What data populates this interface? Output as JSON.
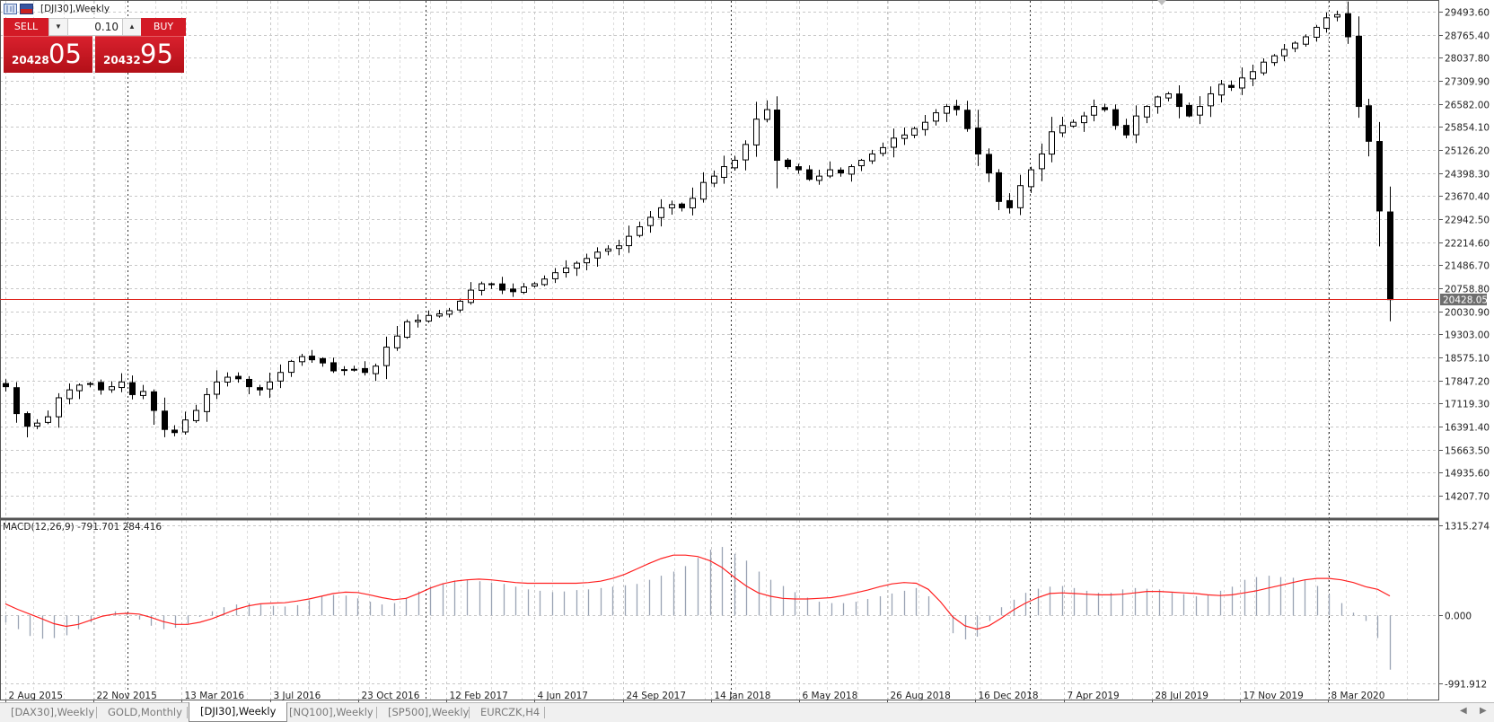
{
  "window": {
    "symbol_title": "[DJI30],Weekly"
  },
  "trade_panel": {
    "sell_label": "SELL",
    "buy_label": "BUY",
    "volume": "0.10",
    "bid_prefix": "20428",
    "bid_big": "05",
    "ask_prefix": "20432",
    "ask_big": "95"
  },
  "price_axis": {
    "labels": [
      "29493.60",
      "28765.40",
      "28037.80",
      "27309.90",
      "26582.00",
      "25854.10",
      "25126.20",
      "24398.30",
      "23670.40",
      "22942.50",
      "22214.60",
      "21486.70",
      "20758.80",
      "20030.90",
      "19303.00",
      "18575.10",
      "17847.20",
      "17119.30",
      "16391.40",
      "15663.50",
      "14935.60",
      "14207.70"
    ],
    "current_price": "20428.05"
  },
  "macd": {
    "label": "MACD(12,26,9) -791.701 284.416",
    "axis_labels": [
      "1315.274",
      "0.000",
      "-991.912"
    ]
  },
  "time_axis": {
    "labels": [
      "2 Aug 2015",
      "22 Nov 2015",
      "13 Mar 2016",
      "3 Jul 2016",
      "23 Oct 2016",
      "12 Feb 2017",
      "4 Jun 2017",
      "24 Sep 2017",
      "14 Jan 2018",
      "6 May 2018",
      "26 Aug 2018",
      "16 Dec 2018",
      "7 Apr 2019",
      "28 Jul 2019",
      "17 Nov 2019",
      "8 Mar 2020"
    ]
  },
  "tabs": [
    {
      "label": "[DAX30],Weekly",
      "active": false
    },
    {
      "label": "GOLD,Monthly",
      "active": false
    },
    {
      "label": "[DJI30],Weekly",
      "active": true
    },
    {
      "label": "[NQ100],Weekly",
      "active": false
    },
    {
      "label": "[SP500],Weekly",
      "active": false
    },
    {
      "label": "EURCZK,H4",
      "active": false
    }
  ],
  "colors": {
    "bid_line": "#e0231c",
    "macd_signal": "#ff2020",
    "macd_hist": "#9aa3b4",
    "panel_red": "#d31a26",
    "grid": "#c8c8c8"
  },
  "chart_data": [
    {
      "type": "candlestick",
      "title": "[DJI30],Weekly",
      "series": [
        {
          "name": "[DJI30]",
          "values": [
            17650,
            16800,
            16400,
            16500,
            16700,
            17300,
            17550,
            17700,
            17750,
            17550,
            17650,
            17800,
            17400,
            17500,
            16900,
            16300,
            16200,
            16600,
            16900,
            17400,
            17800,
            17950,
            17900,
            17650,
            17550,
            17800,
            18100,
            18450,
            18600,
            18500,
            18400,
            18150,
            18180,
            18200,
            18100,
            18300,
            18900,
            19250,
            19700,
            19750,
            19900,
            19950,
            20050,
            20350,
            20700,
            20900,
            20900,
            20700,
            20650,
            20800,
            20900,
            21050,
            21250,
            21400,
            21550,
            21700,
            21900,
            22000,
            22100,
            22400,
            22700,
            23000,
            23300,
            23400,
            23300,
            23600,
            24100,
            24300,
            24600,
            24800,
            25300,
            26100,
            26400,
            24800,
            24600,
            24500,
            24200,
            24300,
            24500,
            24400,
            24600,
            24800,
            25000,
            25200,
            25500,
            25600,
            25800,
            26000,
            26300,
            26500,
            26400,
            25800,
            25000,
            24400,
            23500,
            23300,
            24000,
            24500,
            25000,
            25700,
            25900,
            26000,
            26200,
            26500,
            26400,
            25900,
            25600,
            26200,
            26500,
            26800,
            26900,
            26500,
            26200,
            26500,
            26900,
            27200,
            27100,
            27400,
            27600,
            27900,
            28100,
            28300,
            28500,
            28700,
            29000,
            29300,
            29400,
            28700,
            26500,
            25400,
            23200,
            20400
          ]
        }
      ],
      "x_range": [
        "2 Aug 2015",
        "8 Mar 2020"
      ],
      "y_range": [
        14207.7,
        29493.6
      ],
      "current_price": 20428.05
    },
    {
      "type": "line",
      "title": "MACD(12,26,9) -791.701 284.416",
      "series": [
        {
          "name": "MACD histogram",
          "values": [
            -100,
            -200,
            -300,
            -340,
            -330,
            -290,
            -200,
            -100,
            0,
            60,
            40,
            -60,
            -150,
            -200,
            -180,
            -120,
            -20,
            60,
            120,
            160,
            180,
            160,
            140,
            130,
            150,
            220,
            280,
            300,
            290,
            250,
            200,
            160,
            180,
            260,
            350,
            420,
            470,
            510,
            520,
            500,
            480,
            460,
            420,
            380,
            360,
            340,
            350,
            370,
            380,
            400,
            420,
            440,
            460,
            520,
            580,
            640,
            720,
            840,
            960,
            1000,
            900,
            800,
            640,
            520,
            430,
            340,
            260,
            200,
            180,
            180,
            200,
            240,
            280,
            320,
            360,
            400,
            280,
            0,
            -260,
            -350,
            -310,
            -80,
            120,
            230,
            330,
            390,
            420,
            430,
            400,
            360,
            330,
            330,
            380,
            400,
            390,
            380,
            330,
            310,
            280,
            300,
            360,
            420,
            520,
            560,
            580,
            560,
            550,
            520,
            430,
            310,
            180,
            40,
            -80,
            -330,
            -791.701
          ]
        },
        {
          "name": "Signal",
          "values": [
            170,
            90,
            20,
            -50,
            -120,
            -160,
            -130,
            -70,
            -10,
            20,
            30,
            20,
            -30,
            -90,
            -130,
            -130,
            -100,
            -50,
            20,
            90,
            140,
            170,
            180,
            185,
            210,
            240,
            280,
            320,
            340,
            335,
            300,
            260,
            230,
            250,
            320,
            400,
            460,
            500,
            520,
            530,
            520,
            500,
            480,
            470,
            470,
            470,
            470,
            470,
            480,
            500,
            540,
            600,
            680,
            760,
            830,
            880,
            880,
            860,
            800,
            700,
            560,
            430,
            330,
            280,
            250,
            240,
            240,
            250,
            260,
            290,
            330,
            370,
            420,
            460,
            480,
            470,
            380,
            200,
            -20,
            -150,
            -200,
            -150,
            -40,
            80,
            180,
            260,
            320,
            330,
            320,
            310,
            300,
            300,
            310,
            330,
            350,
            350,
            340,
            330,
            320,
            300,
            290,
            300,
            330,
            360,
            400,
            440,
            480,
            520,
            540,
            540,
            520,
            480,
            420,
            380,
            284.416
          ]
        }
      ],
      "y_range": [
        -991.912,
        1315.274
      ]
    }
  ]
}
